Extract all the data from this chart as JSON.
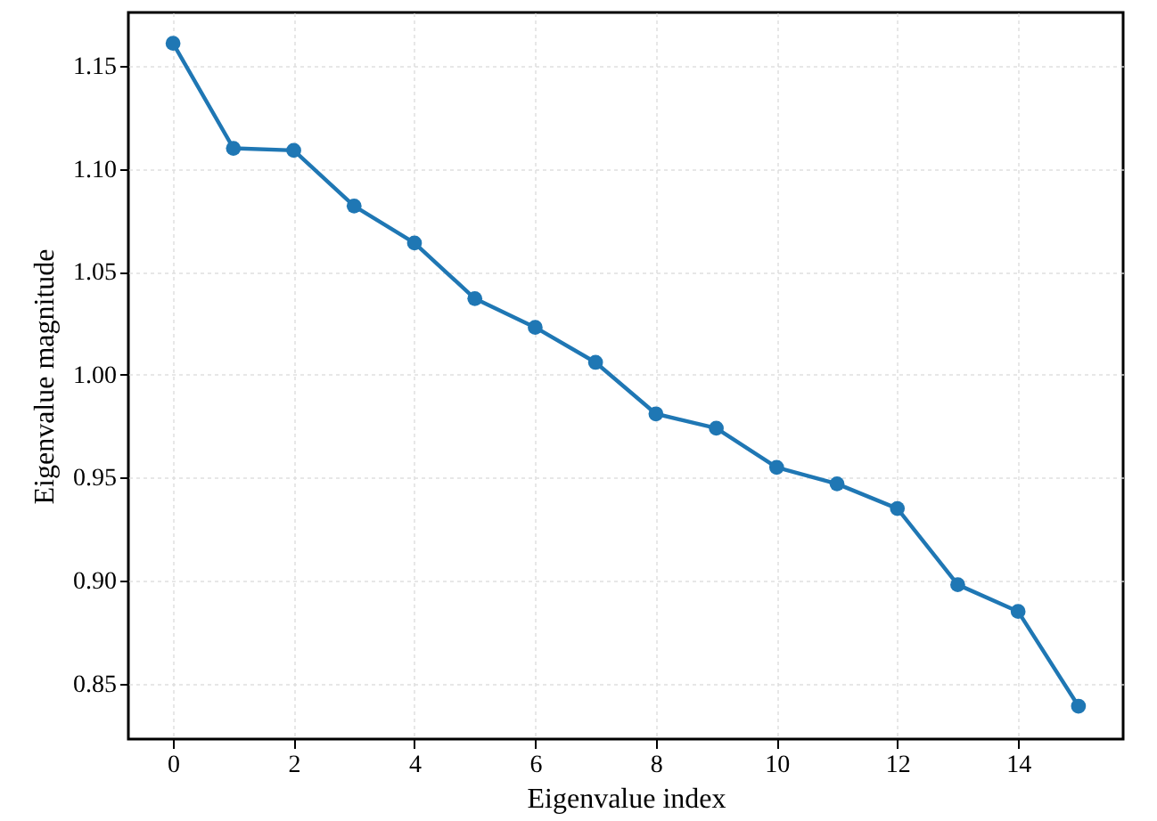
{
  "chart_data": {
    "type": "line",
    "xlabel": "Eigenvalue index",
    "ylabel": "Eigenvalue magnitude",
    "x": [
      0,
      1,
      2,
      3,
      4,
      5,
      6,
      7,
      8,
      9,
      10,
      11,
      12,
      13,
      14,
      15
    ],
    "series": [
      {
        "color": "#1f77b4",
        "values": [
          1.161,
          1.11,
          1.109,
          1.082,
          1.064,
          1.037,
          1.023,
          1.006,
          0.981,
          0.974,
          0.955,
          0.947,
          0.935,
          0.898,
          0.885,
          0.839
        ]
      }
    ],
    "xlim": [
      -0.74,
      15.74
    ],
    "xticks": [
      0,
      2,
      4,
      6,
      8,
      10,
      12,
      14
    ],
    "ylim": [
      0.823,
      1.176
    ],
    "yticks": [
      0.85,
      {
        "value": 0.9,
        "label": "0.90"
      },
      0.95,
      {
        "value": 1.0,
        "label": "1.00"
      },
      1.05,
      {
        "value": 1.1,
        "label": "1.10"
      },
      1.15
    ],
    "grid": true,
    "marker": "circle",
    "line_style": "solid"
  }
}
